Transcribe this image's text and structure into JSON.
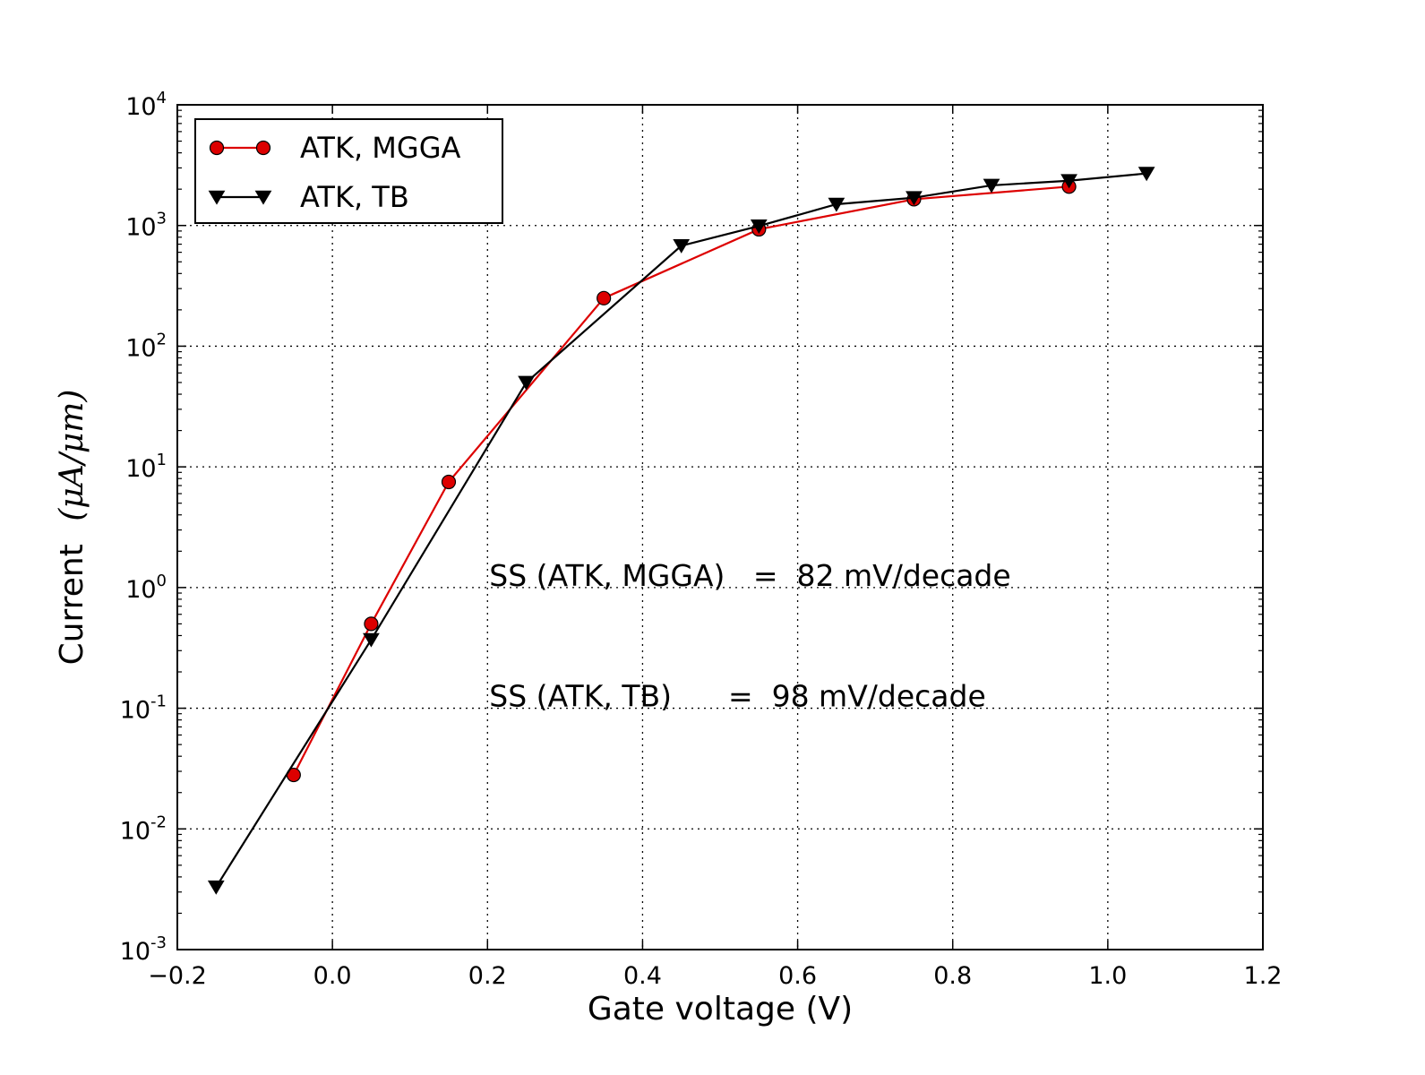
{
  "chart_data": {
    "type": "line",
    "xlabel": "Gate voltage (V)",
    "ylabel": {
      "text": "Current",
      "unit": "(μA/μm)"
    },
    "xlim": [
      -0.2,
      1.2
    ],
    "ylim": [
      0.001,
      10000
    ],
    "yscale": "log",
    "grid": true,
    "legend_position": "upper-left",
    "x_ticks": [
      {
        "value": -0.2,
        "label": "−0.2"
      },
      {
        "value": 0.0,
        "label": "0.0"
      },
      {
        "value": 0.2,
        "label": "0.2"
      },
      {
        "value": 0.4,
        "label": "0.4"
      },
      {
        "value": 0.6,
        "label": "0.6"
      },
      {
        "value": 0.8,
        "label": "0.8"
      },
      {
        "value": 1.0,
        "label": "1.0"
      },
      {
        "value": 1.2,
        "label": "1.2"
      }
    ],
    "y_ticks": [
      {
        "exp": -3,
        "base": "10",
        "sup": "-3"
      },
      {
        "exp": -2,
        "base": "10",
        "sup": "-2"
      },
      {
        "exp": -1,
        "base": "10",
        "sup": "-1"
      },
      {
        "exp": 0,
        "base": "10",
        "sup": "0"
      },
      {
        "exp": 1,
        "base": "10",
        "sup": "1"
      },
      {
        "exp": 2,
        "base": "10",
        "sup": "2"
      },
      {
        "exp": 3,
        "base": "10",
        "sup": "3"
      },
      {
        "exp": 4,
        "base": "10",
        "sup": "4"
      }
    ],
    "series": [
      {
        "name": "ATK, MGGA",
        "color": "#dd0000",
        "marker": "circle",
        "x": [
          -0.05,
          0.05,
          0.15,
          0.35,
          0.55,
          0.75,
          0.95
        ],
        "y": [
          0.028,
          0.5,
          7.5,
          250,
          930,
          1650,
          2100
        ]
      },
      {
        "name": "ATK, TB",
        "color": "#000000",
        "marker": "triangle-down",
        "x": [
          -0.15,
          0.05,
          0.25,
          0.45,
          0.55,
          0.65,
          0.75,
          0.85,
          0.95,
          1.05
        ],
        "y": [
          0.0033,
          0.37,
          50,
          680,
          990,
          1500,
          1700,
          2150,
          2350,
          2700
        ]
      }
    ],
    "annotations": [
      {
        "text": "SS (ATK, MGGA)   =  82 mV/decade",
        "x": 0.2,
        "y": 1.0
      },
      {
        "text": "SS (ATK, TB)      =  98 mV/decade",
        "x": 0.2,
        "y": 0.1
      }
    ]
  }
}
